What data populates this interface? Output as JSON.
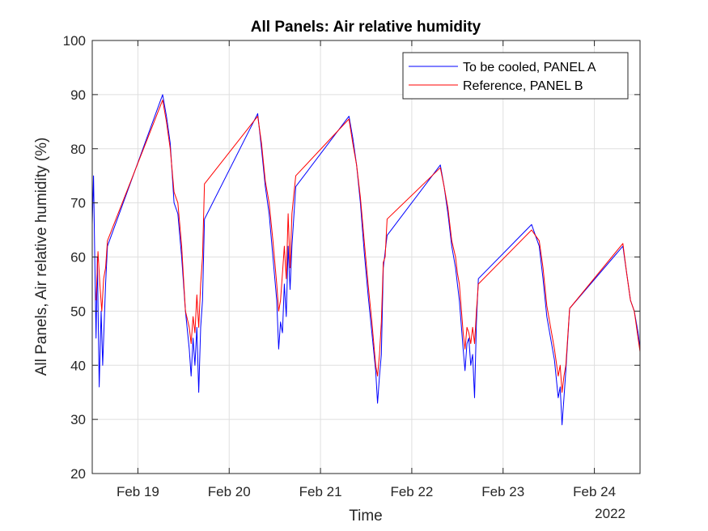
{
  "chart_data": {
    "type": "line",
    "title": "All Panels: Air relative humidity",
    "xlabel": "Time",
    "ylabel": "All Panels, Air relative humidity (%)",
    "year_label": "2022",
    "ylim": [
      20,
      100
    ],
    "yticks": [
      20,
      30,
      40,
      50,
      60,
      70,
      80,
      90,
      100
    ],
    "xlim": [
      "2022-02-18 12:00",
      "2022-02-24 12:00"
    ],
    "xticks": [
      {
        "date": "2022-02-19",
        "label": "Feb 19"
      },
      {
        "date": "2022-02-20",
        "label": "Feb 20"
      },
      {
        "date": "2022-02-21",
        "label": "Feb 21"
      },
      {
        "date": "2022-02-22",
        "label": "Feb 22"
      },
      {
        "date": "2022-02-23",
        "label": "Feb 23"
      },
      {
        "date": "2022-02-24",
        "label": "Feb 24"
      }
    ],
    "grid": true,
    "legend_position": "top-right",
    "series": [
      {
        "name": "To be cooled, PANEL A",
        "color": "#0000ff",
        "points": [
          [
            "2022-02-18 12:00",
            66
          ],
          [
            "2022-02-18 12:20",
            75
          ],
          [
            "2022-02-18 12:40",
            60
          ],
          [
            "2022-02-18 13:00",
            45
          ],
          [
            "2022-02-18 13:20",
            60
          ],
          [
            "2022-02-18 13:50",
            36
          ],
          [
            "2022-02-18 14:20",
            50
          ],
          [
            "2022-02-18 14:45",
            40
          ],
          [
            "2022-02-18 15:30",
            55
          ],
          [
            "2022-02-18 16:00",
            62
          ],
          [
            "2022-02-19 06:30",
            90
          ],
          [
            "2022-02-19 07:30",
            86
          ],
          [
            "2022-02-19 08:30",
            81
          ],
          [
            "2022-02-19 09:30",
            70
          ],
          [
            "2022-02-19 10:30",
            68
          ],
          [
            "2022-02-19 11:30",
            60
          ],
          [
            "2022-02-19 12:30",
            50
          ],
          [
            "2022-02-19 13:30",
            43
          ],
          [
            "2022-02-19 14:00",
            38
          ],
          [
            "2022-02-19 14:30",
            45
          ],
          [
            "2022-02-19 15:00",
            40
          ],
          [
            "2022-02-19 15:30",
            47
          ],
          [
            "2022-02-19 16:00",
            35
          ],
          [
            "2022-02-19 16:30",
            47
          ],
          [
            "2022-02-19 17:00",
            52
          ],
          [
            "2022-02-19 17:30",
            67
          ],
          [
            "2022-02-20 07:30",
            86.5
          ],
          [
            "2022-02-20 08:30",
            80
          ],
          [
            "2022-02-20 09:30",
            73
          ],
          [
            "2022-02-20 10:30",
            68
          ],
          [
            "2022-02-20 11:30",
            60
          ],
          [
            "2022-02-20 12:30",
            52
          ],
          [
            "2022-02-20 13:00",
            43
          ],
          [
            "2022-02-20 13:30",
            48
          ],
          [
            "2022-02-20 14:00",
            46
          ],
          [
            "2022-02-20 14:30",
            55
          ],
          [
            "2022-02-20 15:00",
            49
          ],
          [
            "2022-02-20 15:30",
            62
          ],
          [
            "2022-02-20 16:00",
            54
          ],
          [
            "2022-02-20 16:30",
            62
          ],
          [
            "2022-02-20 17:30",
            73
          ],
          [
            "2022-02-21 07:30",
            86
          ],
          [
            "2022-02-21 08:30",
            82
          ],
          [
            "2022-02-21 09:30",
            77
          ],
          [
            "2022-02-21 10:30",
            70
          ],
          [
            "2022-02-21 11:30",
            61
          ],
          [
            "2022-02-21 12:30",
            53
          ],
          [
            "2022-02-21 13:30",
            46
          ],
          [
            "2022-02-21 14:30",
            39
          ],
          [
            "2022-02-21 15:00",
            33
          ],
          [
            "2022-02-21 15:30",
            38
          ],
          [
            "2022-02-21 16:00",
            42
          ],
          [
            "2022-02-21 16:30",
            58
          ],
          [
            "2022-02-21 17:30",
            64
          ],
          [
            "2022-02-22 07:30",
            77
          ],
          [
            "2022-02-22 08:30",
            73
          ],
          [
            "2022-02-22 09:30",
            68
          ],
          [
            "2022-02-22 10:30",
            62
          ],
          [
            "2022-02-22 11:30",
            58
          ],
          [
            "2022-02-22 12:00",
            55
          ],
          [
            "2022-02-22 12:30",
            52
          ],
          [
            "2022-02-22 13:30",
            43
          ],
          [
            "2022-02-22 14:00",
            39
          ],
          [
            "2022-02-22 14:30",
            44
          ],
          [
            "2022-02-22 15:00",
            45
          ],
          [
            "2022-02-22 15:30",
            40
          ],
          [
            "2022-02-22 16:00",
            42
          ],
          [
            "2022-02-22 16:30",
            34
          ],
          [
            "2022-02-22 17:00",
            48
          ],
          [
            "2022-02-22 17:30",
            56
          ],
          [
            "2022-02-23 07:30",
            66
          ],
          [
            "2022-02-23 08:30",
            64
          ],
          [
            "2022-02-23 09:30",
            62
          ],
          [
            "2022-02-23 10:30",
            56
          ],
          [
            "2022-02-23 11:30",
            49
          ],
          [
            "2022-02-23 12:30",
            45
          ],
          [
            "2022-02-23 13:30",
            41
          ],
          [
            "2022-02-23 14:30",
            34
          ],
          [
            "2022-02-23 15:00",
            36
          ],
          [
            "2022-02-23 15:30",
            29
          ],
          [
            "2022-02-23 16:00",
            34
          ],
          [
            "2022-02-23 16:30",
            39
          ],
          [
            "2022-02-23 17:30",
            50.5
          ],
          [
            "2022-02-24 07:30",
            62
          ],
          [
            "2022-02-24 08:30",
            57
          ],
          [
            "2022-02-24 09:30",
            52
          ],
          [
            "2022-02-24 10:30",
            50
          ],
          [
            "2022-02-24 11:30",
            46
          ],
          [
            "2022-02-24 12:00",
            43
          ]
        ]
      },
      {
        "name": "Reference, PANEL B",
        "color": "#ff0000",
        "points": [
          [
            "2022-02-18 13:00",
            52
          ],
          [
            "2022-02-18 13:30",
            61
          ],
          [
            "2022-02-18 14:00",
            55
          ],
          [
            "2022-02-18 14:30",
            50
          ],
          [
            "2022-02-18 15:00",
            56
          ],
          [
            "2022-02-18 15:30",
            58
          ],
          [
            "2022-02-18 16:00",
            63
          ],
          [
            "2022-02-19 06:30",
            89
          ],
          [
            "2022-02-19 07:30",
            85
          ],
          [
            "2022-02-19 08:30",
            80
          ],
          [
            "2022-02-19 09:30",
            72
          ],
          [
            "2022-02-19 10:30",
            70
          ],
          [
            "2022-02-19 11:30",
            62
          ],
          [
            "2022-02-19 12:30",
            50
          ],
          [
            "2022-02-19 13:30",
            47
          ],
          [
            "2022-02-19 14:00",
            44
          ],
          [
            "2022-02-19 14:30",
            49
          ],
          [
            "2022-02-19 15:00",
            46
          ],
          [
            "2022-02-19 15:30",
            53
          ],
          [
            "2022-02-19 16:00",
            47
          ],
          [
            "2022-02-19 16:30",
            55
          ],
          [
            "2022-02-19 17:00",
            60
          ],
          [
            "2022-02-19 17:30",
            73.5
          ],
          [
            "2022-02-20 07:30",
            86
          ],
          [
            "2022-02-20 08:30",
            81
          ],
          [
            "2022-02-20 09:30",
            74
          ],
          [
            "2022-02-20 10:30",
            70
          ],
          [
            "2022-02-20 11:30",
            63
          ],
          [
            "2022-02-20 12:30",
            55
          ],
          [
            "2022-02-20 13:00",
            50
          ],
          [
            "2022-02-20 13:30",
            52
          ],
          [
            "2022-02-20 14:00",
            57
          ],
          [
            "2022-02-20 14:30",
            62
          ],
          [
            "2022-02-20 15:00",
            56
          ],
          [
            "2022-02-20 15:30",
            68
          ],
          [
            "2022-02-20 16:00",
            58
          ],
          [
            "2022-02-20 16:30",
            68
          ],
          [
            "2022-02-20 17:30",
            75
          ],
          [
            "2022-02-21 07:30",
            85.5
          ],
          [
            "2022-02-21 08:30",
            81
          ],
          [
            "2022-02-21 09:30",
            77
          ],
          [
            "2022-02-21 10:30",
            71
          ],
          [
            "2022-02-21 11:30",
            63
          ],
          [
            "2022-02-21 12:30",
            55
          ],
          [
            "2022-02-21 13:30",
            48
          ],
          [
            "2022-02-21 14:30",
            40
          ],
          [
            "2022-02-21 15:00",
            38
          ],
          [
            "2022-02-21 15:30",
            42
          ],
          [
            "2022-02-21 16:00",
            48
          ],
          [
            "2022-02-21 16:30",
            59
          ],
          [
            "2022-02-21 17:00",
            60
          ],
          [
            "2022-02-21 17:30",
            67
          ],
          [
            "2022-02-22 07:30",
            76.5
          ],
          [
            "2022-02-22 08:30",
            73
          ],
          [
            "2022-02-22 09:30",
            69
          ],
          [
            "2022-02-22 10:30",
            63
          ],
          [
            "2022-02-22 11:30",
            60
          ],
          [
            "2022-02-22 12:00",
            57
          ],
          [
            "2022-02-22 12:30",
            55
          ],
          [
            "2022-02-22 13:30",
            46
          ],
          [
            "2022-02-22 14:00",
            43
          ],
          [
            "2022-02-22 14:30",
            47
          ],
          [
            "2022-02-22 15:00",
            46
          ],
          [
            "2022-02-22 15:30",
            44
          ],
          [
            "2022-02-22 16:00",
            47
          ],
          [
            "2022-02-22 16:30",
            44
          ],
          [
            "2022-02-22 17:00",
            50
          ],
          [
            "2022-02-22 17:30",
            55
          ],
          [
            "2022-02-23 07:30",
            65
          ],
          [
            "2022-02-23 08:30",
            64
          ],
          [
            "2022-02-23 09:30",
            63
          ],
          [
            "2022-02-23 10:30",
            58
          ],
          [
            "2022-02-23 11:30",
            51
          ],
          [
            "2022-02-23 12:30",
            47
          ],
          [
            "2022-02-23 13:30",
            43
          ],
          [
            "2022-02-23 14:30",
            38
          ],
          [
            "2022-02-23 15:00",
            40
          ],
          [
            "2022-02-23 15:30",
            35
          ],
          [
            "2022-02-23 16:00",
            38
          ],
          [
            "2022-02-23 16:30",
            40
          ],
          [
            "2022-02-23 17:30",
            50.5
          ],
          [
            "2022-02-24 07:30",
            62.5
          ],
          [
            "2022-02-24 08:30",
            57
          ],
          [
            "2022-02-24 09:30",
            52
          ],
          [
            "2022-02-24 10:30",
            50
          ],
          [
            "2022-02-24 11:30",
            45
          ],
          [
            "2022-02-24 12:00",
            42.5
          ]
        ]
      }
    ]
  }
}
